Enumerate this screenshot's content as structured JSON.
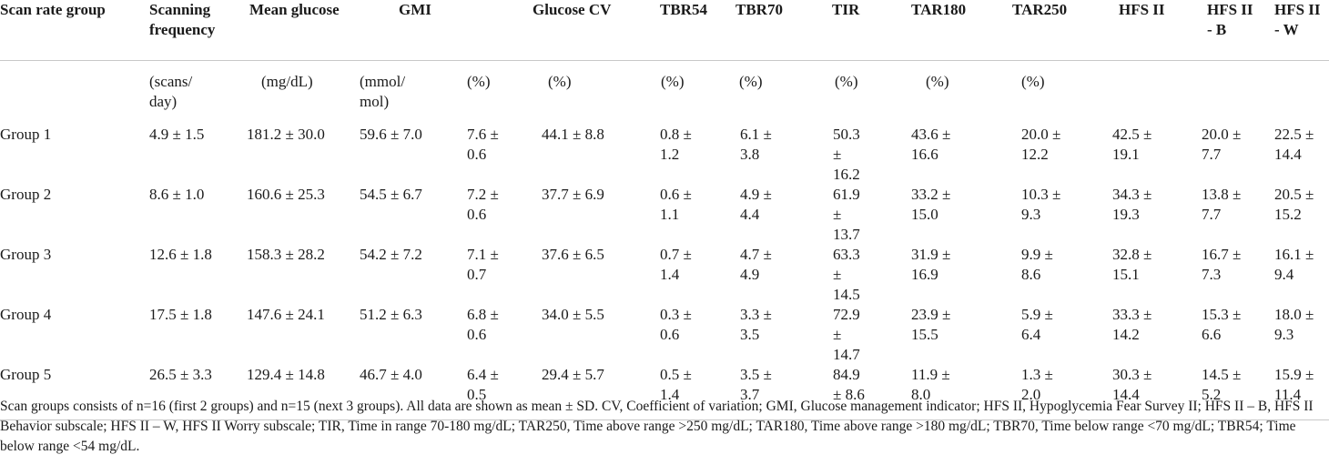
{
  "table": {
    "headers": [
      {
        "key": "group",
        "label": "Scan rate group"
      },
      {
        "key": "freq",
        "label": "Scanning frequency"
      },
      {
        "key": "mean",
        "label": "Mean glucose"
      },
      {
        "key": "gmi",
        "label": "GMI"
      },
      {
        "key": "gmi_pct",
        "label": ""
      },
      {
        "key": "cv",
        "label": "Glucose CV"
      },
      {
        "key": "tbr54",
        "label": "TBR54"
      },
      {
        "key": "tbr70",
        "label": "TBR70"
      },
      {
        "key": "tir",
        "label": "TIR"
      },
      {
        "key": "tar180",
        "label": "TAR180"
      },
      {
        "key": "tar250",
        "label": "TAR250"
      },
      {
        "key": "hfs",
        "label": "HFS II"
      },
      {
        "key": "hfsb",
        "label": "HFS II - B"
      },
      {
        "key": "hfsw",
        "label": "HFS II - W"
      }
    ],
    "units": [
      "",
      "(scans/ day)",
      "(mg/dL)",
      "(mmol/ mol)",
      "(%)",
      "(%)",
      "(%)",
      "(%)",
      "(%)",
      "(%)",
      "(%)",
      "",
      "",
      ""
    ],
    "rows": [
      [
        "Group 1",
        "4.9 ± 1.5",
        "181.2 ± 30.0",
        "59.6 ± 7.0",
        "7.6 ± 0.6",
        "44.1 ± 8.8",
        "0.8 ± 1.2",
        "6.1 ± 3.8",
        "50.3 ± 16.2",
        "43.6 ± 16.6",
        "20.0 ± 12.2",
        "42.5 ± 19.1",
        "20.0 ± 7.7",
        "22.5 ± 14.4"
      ],
      [
        "Group 2",
        "8.6 ± 1.0",
        "160.6 ± 25.3",
        "54.5 ± 6.7",
        "7.2 ± 0.6",
        "37.7 ± 6.9",
        "0.6 ± 1.1",
        "4.9 ± 4.4",
        "61.9 ± 13.7",
        "33.2 ± 15.0",
        "10.3 ± 9.3",
        "34.3 ± 19.3",
        "13.8 ± 7.7",
        "20.5 ± 15.2"
      ],
      [
        "Group 3",
        "12.6 ± 1.8",
        "158.3 ± 28.2",
        "54.2 ± 7.2",
        "7.1 ± 0.7",
        "37.6 ± 6.5",
        "0.7 ± 1.4",
        "4.7 ± 4.9",
        "63.3 ± 14.5",
        "31.9 ± 16.9",
        "9.9 ± 8.6",
        "32.8 ± 15.1",
        "16.7 ± 7.3",
        "16.1 ± 9.4"
      ],
      [
        "Group 4",
        "17.5 ± 1.8",
        "147.6 ± 24.1",
        "51.2 ± 6.3",
        "6.8 ± 0.6",
        "34.0 ± 5.5",
        "0.3 ± 0.6",
        "3.3 ± 3.5",
        "72.9 ± 14.7",
        "23.9 ± 15.5",
        "5.9 ± 6.4",
        "33.3 ± 14.2",
        "15.3 ± 6.6",
        "18.0 ± 9.3"
      ],
      [
        "Group 5",
        "26.5 ± 3.3",
        "129.4 ± 14.8",
        "46.7 ± 4.0",
        "6.4 ± 0.5",
        "29.4 ± 5.7",
        "0.5 ± 1.4",
        "3.5 ± 3.7",
        "84.9 ± 8.6",
        "11.9 ± 8.0",
        "1.3 ± 2.0",
        "30.3 ± 14.4",
        "14.5 ± 5.2",
        "15.9 ± 11.4"
      ]
    ]
  },
  "footnote": {
    "text": "Scan groups consists of n=16 (first 2 groups) and n=15 (next 3 groups). All data are shown as mean ± SD. CV, Coefficient of variation; GMI, Glucose management indicator; HFS II, Hypoglycemia Fear Survey II; HFS II – B, HFS II Behavior subscale; HFS II – W, HFS II Worry subscale; TIR, Time in range 70-180 mg/dL; TAR250, Time above range >250 mg/dL; TAR180, Time above range >180 mg/dL; TBR70, Time below range <70 mg/dL; TBR54; Time below range <54 mg/dL."
  }
}
